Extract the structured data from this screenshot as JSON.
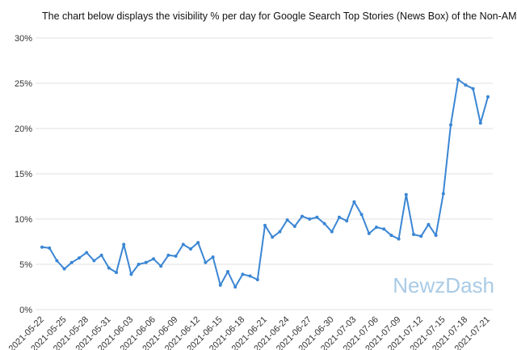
{
  "chart_data": {
    "type": "line",
    "title": "The chart below displays the visibility % per day for Google Search Top Stories (News Box) of the Non-AMP URLs.",
    "watermark": "NewzDash",
    "categories": [
      "2021-05-22",
      null,
      null,
      "2021-05-25",
      null,
      null,
      "2021-05-28",
      null,
      null,
      "2021-05-31",
      null,
      null,
      "2021-06-03",
      null,
      null,
      "2021-06-06",
      null,
      null,
      "2021-06-09",
      null,
      null,
      "2021-06-12",
      null,
      null,
      "2021-06-15",
      null,
      null,
      "2021-06-18",
      null,
      null,
      "2021-06-21",
      null,
      null,
      "2021-06-24",
      null,
      null,
      "2021-06-27",
      null,
      null,
      "2021-06-30",
      null,
      null,
      "2021-07-03",
      null,
      null,
      "2021-07-06",
      null,
      null,
      "2021-07-09",
      null,
      null,
      "2021-07-12",
      null,
      null,
      "2021-07-15",
      null,
      null,
      "2021-07-18",
      null,
      null,
      "2021-07-21"
    ],
    "values": [
      6.9,
      6.8,
      5.4,
      4.5,
      5.2,
      5.7,
      6.3,
      5.4,
      6.0,
      4.6,
      4.1,
      7.2,
      3.9,
      5.0,
      5.2,
      5.6,
      4.8,
      6.0,
      5.9,
      7.2,
      6.7,
      7.4,
      5.2,
      5.8,
      2.7,
      4.2,
      2.5,
      3.9,
      3.7,
      3.3,
      9.3,
      8.0,
      8.6,
      9.9,
      9.2,
      10.3,
      10.0,
      10.2,
      9.5,
      8.6,
      10.2,
      9.8,
      11.9,
      10.5,
      8.4,
      9.1,
      8.9,
      8.2,
      7.8,
      12.7,
      8.3,
      8.1,
      9.4,
      8.2,
      12.8,
      20.4,
      25.4,
      24.8,
      24.4,
      20.6,
      23.5
    ],
    "color": "#3a86d4",
    "ylim": [
      0,
      30
    ],
    "yticks": [
      {
        "value": 0,
        "label": "0%"
      },
      {
        "value": 5,
        "label": "5%"
      },
      {
        "value": 10,
        "label": "10%"
      },
      {
        "value": 15,
        "label": "15%"
      },
      {
        "value": 20,
        "label": "20%"
      },
      {
        "value": 25,
        "label": "25%"
      },
      {
        "value": 30,
        "label": "30%"
      }
    ],
    "grid": true
  }
}
